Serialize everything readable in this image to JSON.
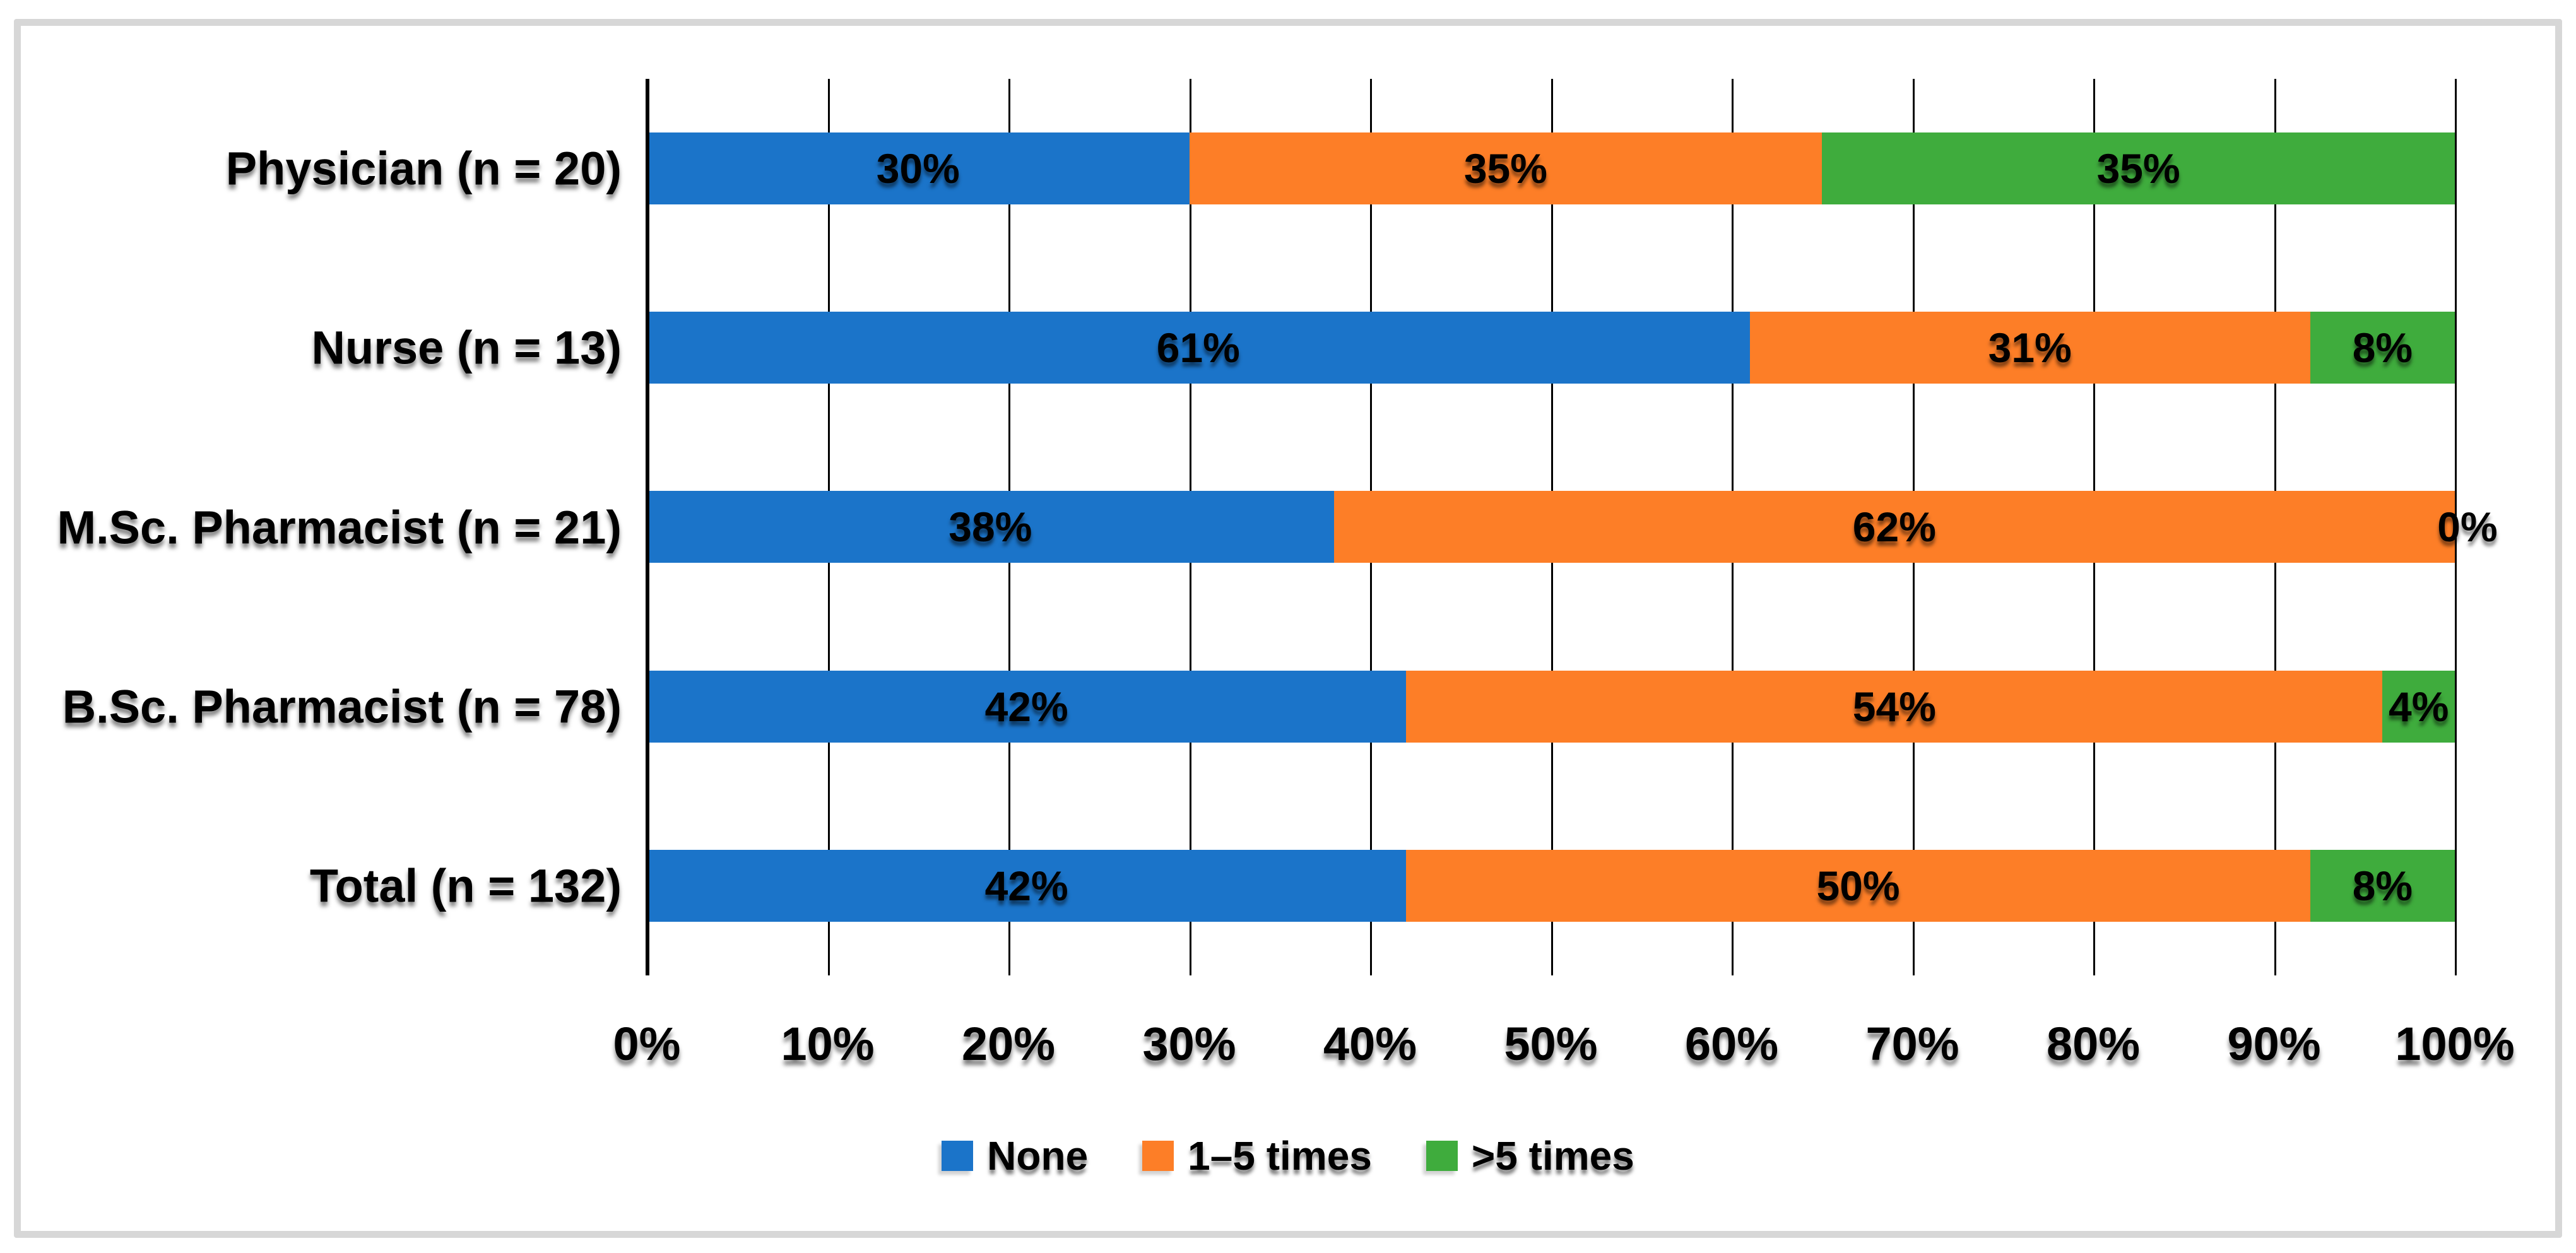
{
  "chart_data": {
    "type": "bar",
    "orientation": "horizontal",
    "stacked": true,
    "title": "",
    "xlabel": "",
    "ylabel": "",
    "categories": [
      "Physician (n = 20)",
      "Nurse (n = 13)",
      "M.Sc. Pharmacist (n = 21)",
      "B.Sc. Pharmacist (n = 78)",
      "Total (n = 132)"
    ],
    "series": [
      {
        "name": "None",
        "color": "#1b74c9",
        "values": [
          30,
          61,
          38,
          42,
          42
        ]
      },
      {
        "name": "1–5 times",
        "color": "#fd7e27",
        "values": [
          35,
          31,
          62,
          54,
          50
        ]
      },
      {
        "name": ">5 times",
        "color": "#3fac3d",
        "values": [
          35,
          8,
          0,
          4,
          8
        ]
      }
    ],
    "data_labels": [
      [
        "30%",
        "35%",
        "35%"
      ],
      [
        "61%",
        "31%",
        "8%"
      ],
      [
        "38%",
        "62%",
        "0%"
      ],
      [
        "42%",
        "54%",
        "4%"
      ],
      [
        "42%",
        "50%",
        "8%"
      ]
    ],
    "x_axis": {
      "min": 0,
      "max": 100,
      "tick_labels": [
        "0%",
        "10%",
        "20%",
        "30%",
        "40%",
        "50%",
        "60%",
        "70%",
        "80%",
        "90%",
        "100%"
      ]
    },
    "legend": {
      "position": "bottom",
      "entries": [
        "None",
        "1–5 times",
        ">5 times"
      ]
    },
    "grid": "vertical",
    "colors": {
      "gridline": "#000000",
      "text": "#000000",
      "frame_border": "#d7d7d7",
      "background": "#ffffff"
    }
  }
}
